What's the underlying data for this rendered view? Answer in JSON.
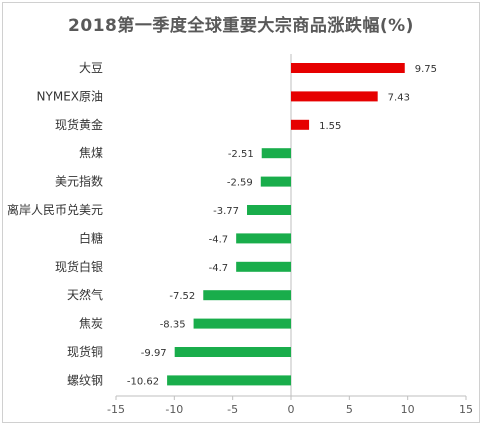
{
  "chart_data": {
    "type": "bar",
    "orientation": "horizontal",
    "title": "2018第一季度全球重要大宗商品涨跌幅(%)",
    "categories": [
      "大豆",
      "NYMEX原油",
      "现货黄金",
      "焦煤",
      "美元指数",
      "离岸人民币兑美元",
      "白糖",
      "现货白银",
      "天然气",
      "焦炭",
      "现货铜",
      "螺纹钢"
    ],
    "values": [
      9.75,
      7.43,
      1.55,
      -2.51,
      -2.59,
      -3.77,
      -4.7,
      -4.7,
      -7.52,
      -8.35,
      -9.97,
      -10.62
    ],
    "value_labels": [
      "9.75",
      "7.43",
      "1.55",
      "-2.51",
      "-2.59",
      "-3.77",
      "-4.7",
      "-4.7",
      "-7.52",
      "-8.35",
      "-9.97",
      "-10.62"
    ],
    "xlim": [
      -15,
      15
    ],
    "x_ticks": [
      -15,
      -10,
      -5,
      0,
      5,
      10,
      15
    ],
    "x_tick_labels": [
      "-15",
      "-10",
      "-5",
      "0",
      "5",
      "10",
      "15"
    ],
    "xlabel": "",
    "ylabel": "",
    "grid": false,
    "colors": {
      "positive": "#e60000",
      "negative": "#19ad4b",
      "axis": "#bfbfbf"
    }
  }
}
